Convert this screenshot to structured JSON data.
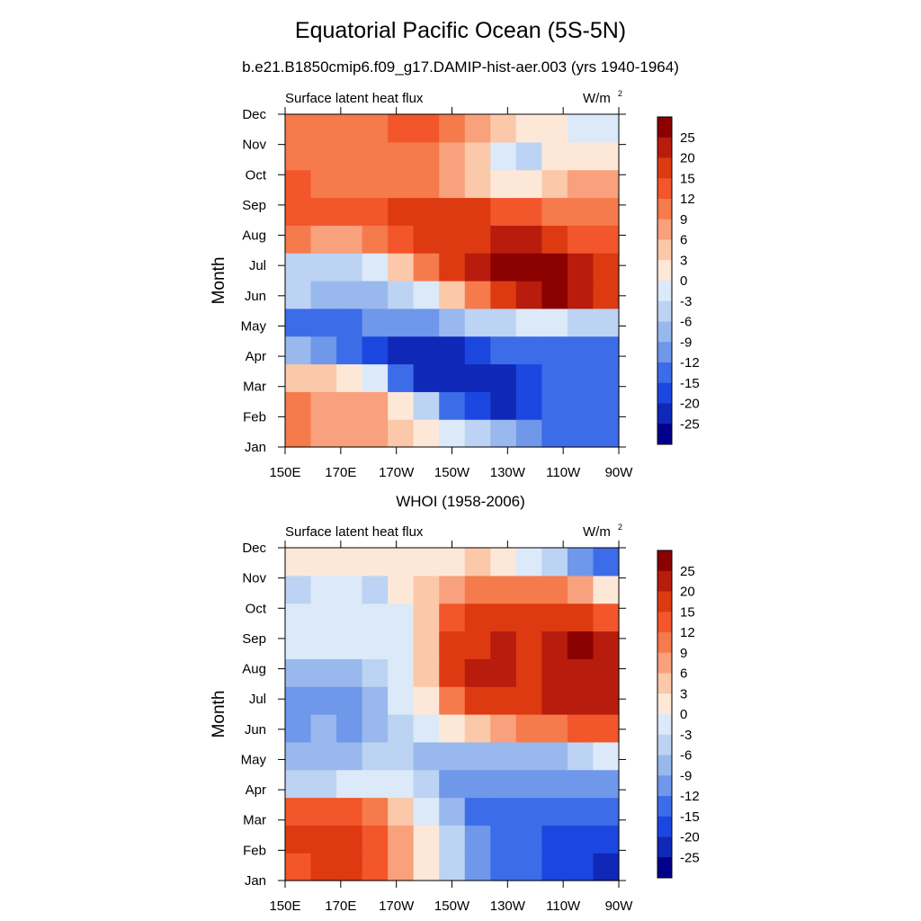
{
  "figure": {
    "title": "Equatorial Pacific Ocean (5S-5N)",
    "subtitle": "b.e21.B1850cmip6.f09_g17.DAMIP-hist-aer.003 (yrs 1940-1964)"
  },
  "chart_data": [
    {
      "type": "heatmap",
      "title": "",
      "left_label": "Surface latent heat flux",
      "units": "W/m",
      "units_exp": "2",
      "ylabel": "Month",
      "xlabel": "",
      "x_ticks": [
        "150E",
        "170E",
        "170W",
        "150W",
        "130W",
        "110W",
        "90W"
      ],
      "y_ticks": [
        "Jan",
        "Feb",
        "Mar",
        "Apr",
        "May",
        "Jun",
        "Jul",
        "Aug",
        "Sep",
        "Oct",
        "Nov",
        "Dec"
      ],
      "colorbar_labels": [
        "25",
        "20",
        "15",
        "12",
        "9",
        "6",
        "3",
        "0",
        "-3",
        "-6",
        "-9",
        "-12",
        "-15",
        "-20",
        "-25"
      ],
      "grid": false,
      "columns": [
        "150E",
        "160E",
        "170E",
        "180",
        "170W",
        "160W",
        "150W",
        "140W",
        "130W",
        "120W",
        "110W",
        "100W",
        "90W"
      ],
      "values": [
        [
          9,
          7,
          7,
          6,
          3,
          0,
          -3,
          -6,
          -9,
          -12,
          -15,
          -15,
          -15
        ],
        [
          9,
          7,
          7,
          6,
          0,
          -6,
          -15,
          -20,
          -25,
          -20,
          -15,
          -15,
          -15
        ],
        [
          3,
          3,
          0,
          -3,
          -15,
          -25,
          -25,
          -25,
          -25,
          -20,
          -15,
          -15,
          -15
        ],
        [
          -9,
          -12,
          -15,
          -20,
          -25,
          -25,
          -25,
          -20,
          -15,
          -15,
          -15,
          -15,
          -15
        ],
        [
          -15,
          -15,
          -15,
          -12,
          -12,
          -12,
          -9,
          -6,
          -6,
          -3,
          -3,
          -6,
          -6
        ],
        [
          -6,
          -9,
          -9,
          -9,
          -6,
          -3,
          3,
          9,
          15,
          20,
          25,
          20,
          15
        ],
        [
          -6,
          -6,
          -6,
          -3,
          3,
          9,
          15,
          20,
          25,
          25,
          25,
          20,
          15
        ],
        [
          9,
          6,
          6,
          9,
          12,
          15,
          15,
          15,
          20,
          20,
          15,
          12,
          12
        ],
        [
          12,
          12,
          12,
          12,
          15,
          15,
          15,
          15,
          12,
          12,
          9,
          9,
          9
        ],
        [
          12,
          9,
          9,
          9,
          9,
          9,
          6,
          3,
          0,
          0,
          3,
          6,
          6
        ],
        [
          9,
          9,
          9,
          9,
          9,
          9,
          6,
          3,
          -3,
          -6,
          0,
          0,
          0
        ],
        [
          9,
          9,
          9,
          9,
          12,
          12,
          9,
          6,
          3,
          0,
          0,
          -3,
          -3
        ]
      ]
    },
    {
      "type": "heatmap",
      "title": "WHOI (1958-2006)",
      "left_label": "Surface latent heat flux",
      "units": "W/m",
      "units_exp": "2",
      "ylabel": "Month",
      "xlabel": "",
      "x_ticks": [
        "150E",
        "170E",
        "170W",
        "150W",
        "130W",
        "110W",
        "90W"
      ],
      "y_ticks": [
        "Jan",
        "Feb",
        "Mar",
        "Apr",
        "May",
        "Jun",
        "Jul",
        "Aug",
        "Sep",
        "Oct",
        "Nov",
        "Dec"
      ],
      "colorbar_labels": [
        "25",
        "20",
        "15",
        "12",
        "9",
        "6",
        "3",
        "0",
        "-3",
        "-6",
        "-9",
        "-12",
        "-15",
        "-20",
        "-25"
      ],
      "grid": false,
      "columns": [
        "150E",
        "160E",
        "170E",
        "180",
        "170W",
        "160W",
        "150W",
        "140W",
        "130W",
        "120W",
        "110W",
        "100W",
        "90W"
      ],
      "values": [
        [
          12,
          15,
          15,
          12,
          6,
          0,
          -6,
          -12,
          -15,
          -15,
          -20,
          -20,
          -25
        ],
        [
          15,
          15,
          15,
          12,
          6,
          0,
          -6,
          -12,
          -15,
          -15,
          -20,
          -20,
          -20
        ],
        [
          12,
          12,
          12,
          9,
          3,
          -3,
          -9,
          -15,
          -15,
          -15,
          -15,
          -15,
          -15
        ],
        [
          -6,
          -6,
          -3,
          -3,
          -3,
          -6,
          -12,
          -12,
          -12,
          -12,
          -12,
          -12,
          -12
        ],
        [
          -9,
          -9,
          -9,
          -6,
          -6,
          -9,
          -9,
          -9,
          -9,
          -9,
          -9,
          -6,
          -3
        ],
        [
          -12,
          -9,
          -12,
          -9,
          -6,
          -3,
          0,
          3,
          6,
          9,
          9,
          12,
          12
        ],
        [
          -12,
          -12,
          -12,
          -9,
          -3,
          0,
          9,
          15,
          15,
          15,
          20,
          20,
          20
        ],
        [
          -9,
          -9,
          -9,
          -6,
          -3,
          3,
          15,
          20,
          20,
          15,
          20,
          20,
          20
        ],
        [
          -3,
          -3,
          -3,
          -3,
          -3,
          3,
          15,
          15,
          20,
          15,
          20,
          25,
          20
        ],
        [
          -3,
          -3,
          -3,
          -3,
          -3,
          3,
          12,
          15,
          15,
          15,
          15,
          15,
          12
        ],
        [
          -6,
          -3,
          -3,
          -6,
          0,
          3,
          6,
          9,
          9,
          9,
          9,
          6,
          0
        ],
        [
          0,
          0,
          0,
          0,
          0,
          0,
          0,
          3,
          0,
          -3,
          -6,
          -12,
          -15
        ]
      ]
    }
  ],
  "colors": {
    "levels": [
      {
        "min": 25,
        "hex": "#8b0000"
      },
      {
        "min": 20,
        "hex": "#b71c0c"
      },
      {
        "min": 15,
        "hex": "#dd3a12"
      },
      {
        "min": 12,
        "hex": "#f2562a"
      },
      {
        "min": 9,
        "hex": "#f57a4c"
      },
      {
        "min": 6,
        "hex": "#f9a07d"
      },
      {
        "min": 3,
        "hex": "#fbc8a9"
      },
      {
        "min": 0,
        "hex": "#fde8d8"
      },
      {
        "min": -3,
        "hex": "#dce9f8"
      },
      {
        "min": -6,
        "hex": "#bcd3f3"
      },
      {
        "min": -9,
        "hex": "#98b8ee"
      },
      {
        "min": -12,
        "hex": "#6f97ea"
      },
      {
        "min": -15,
        "hex": "#3d6ce8"
      },
      {
        "min": -20,
        "hex": "#1c46e0"
      },
      {
        "min": -25,
        "hex": "#1028b8"
      },
      {
        "min": -999,
        "hex": "#00008b"
      }
    ]
  }
}
